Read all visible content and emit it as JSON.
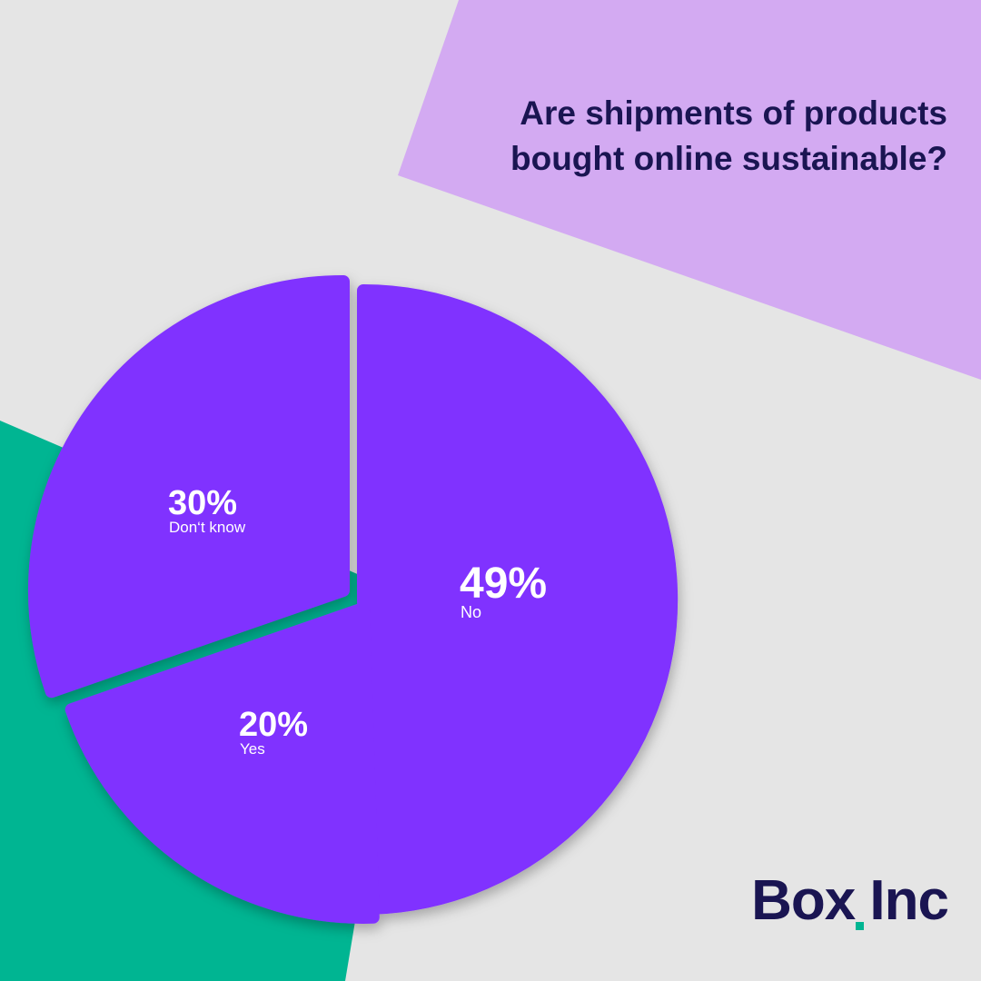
{
  "title_lines": [
    "Are shipments of products",
    "bought online sustainable?"
  ],
  "brand": {
    "name": "Box Inc",
    "accent": "#00b592"
  },
  "colors": {
    "background": "#e5e5e5",
    "lavender": "#d3aaf2",
    "green": "#00b592",
    "slice": "#8031ff",
    "text": "#1a1552"
  },
  "chart_data": {
    "type": "pie",
    "title": "Are shipments of products bought online sustainable?",
    "slices": [
      {
        "label": "No",
        "value": 49,
        "display": "49%"
      },
      {
        "label": "Yes",
        "value": 20,
        "display": "20%"
      },
      {
        "label": "Don‘t know",
        "value": 30,
        "display": "30%"
      }
    ],
    "unit": "%",
    "legend": "none"
  }
}
